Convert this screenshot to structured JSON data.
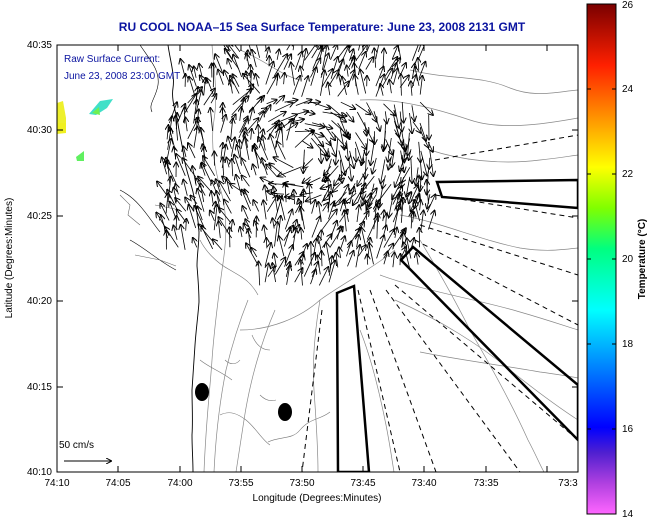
{
  "title": "RU COOL   NOAA–15  Sea Surface Temperature:  June 23, 2008 2131 GMT",
  "inset": {
    "line1": "Raw Surface Current:",
    "line2": "June 23, 2008 23:00 GMT"
  },
  "scale_label": "50 cm/s",
  "x_axis": {
    "label": "Longitude (Degrees:Minutes)",
    "ticks": [
      "74:10",
      "74:05",
      "74:00",
      "73:55",
      "73:50",
      "73:45",
      "73:40",
      "73:35",
      "73:3"
    ]
  },
  "y_axis": {
    "label": "Latitude (Degrees:Minutes)",
    "ticks": [
      "40:35",
      "40:30",
      "40:25",
      "40:20",
      "40:15",
      "40:10"
    ]
  },
  "colorbar": {
    "label": "Temperature (°C)",
    "ticks": [
      "26",
      "24",
      "22",
      "20",
      "18",
      "16",
      "14"
    ],
    "range": [
      14,
      26
    ],
    "colors": [
      "#ff44ff",
      "#8a2be2",
      "#0000ff",
      "#00a0ff",
      "#00ffff",
      "#00ff80",
      "#80ff00",
      "#ffff00",
      "#ff8000",
      "#ff0000",
      "#8b0000"
    ]
  },
  "colors": {
    "title": "#0b14a0",
    "sst_patch_yellow": "#f0f020",
    "sst_patch_teal": "#40e0c0",
    "sst_patch_green": "#60f060"
  }
}
